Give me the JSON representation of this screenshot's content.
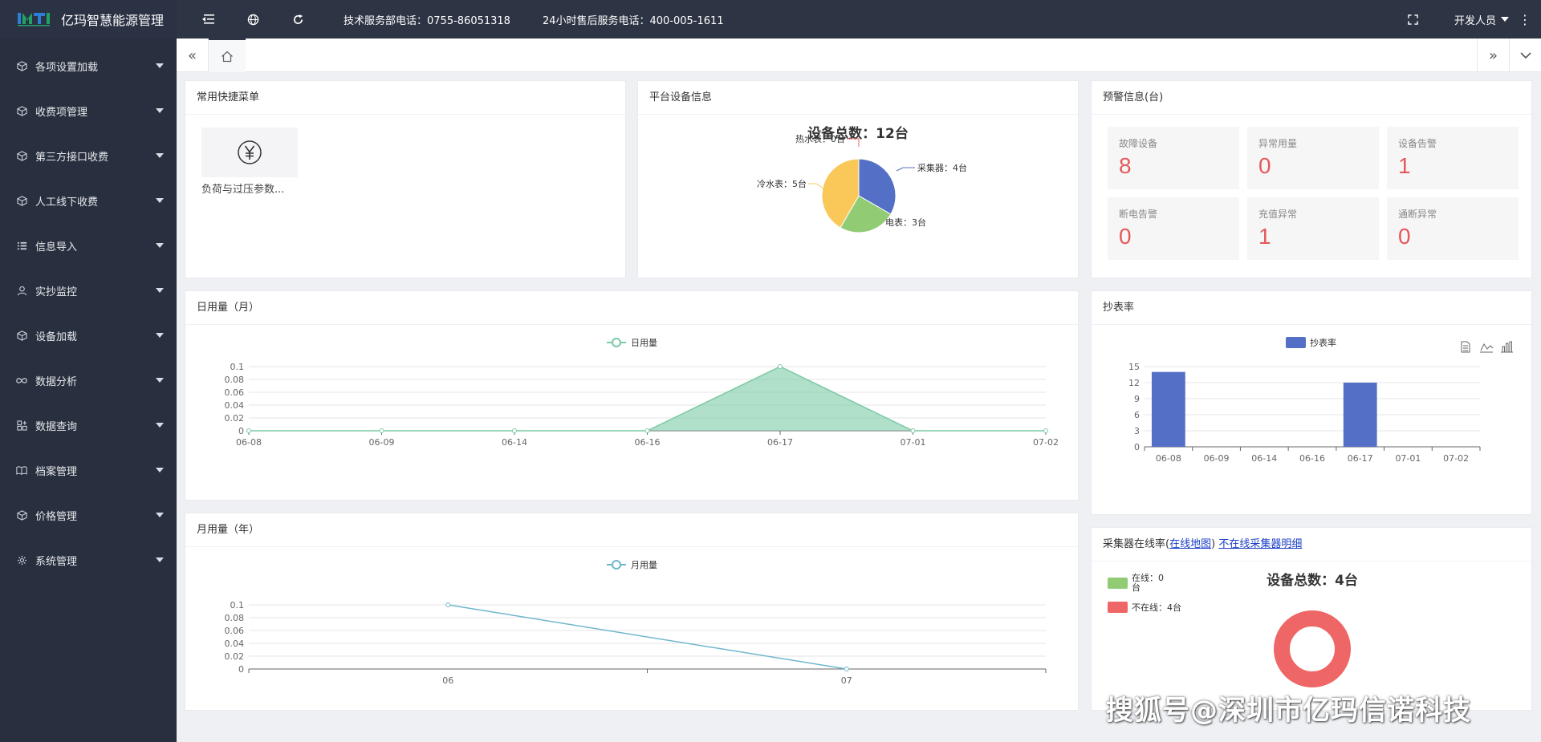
{
  "app": {
    "title": "亿玛智慧能源管理"
  },
  "header": {
    "tech_phone": "技术服务部电话：0755-86051318",
    "service_phone": "24小时售后服务电话：400-005-1611",
    "user": "开发人员"
  },
  "sidebar": {
    "items": [
      {
        "label": "各项设置加载",
        "icon": "cube-icon"
      },
      {
        "label": "收费项管理",
        "icon": "cube-icon"
      },
      {
        "label": "第三方接口收费",
        "icon": "cube-icon"
      },
      {
        "label": "人工线下收费",
        "icon": "cube-icon"
      },
      {
        "label": "信息导入",
        "icon": "list-icon"
      },
      {
        "label": "实抄监控",
        "icon": "user-icon"
      },
      {
        "label": "设备加载",
        "icon": "cube-icon"
      },
      {
        "label": "数据分析",
        "icon": "infinity-icon"
      },
      {
        "label": "数据查询",
        "icon": "grid-plus-icon"
      },
      {
        "label": "档案管理",
        "icon": "book-icon"
      },
      {
        "label": "价格管理",
        "icon": "cube-icon"
      },
      {
        "label": "系统管理",
        "icon": "gear-icon"
      }
    ]
  },
  "quick_menu": {
    "title": "常用快捷菜单",
    "item_label": "负荷与过压参数..."
  },
  "device_info": {
    "title": "平台设备信息",
    "chart_title": "设备总数：12台",
    "labels": {
      "collector": "采集器：4台",
      "electric": "电表：3台",
      "cold": "冷水表：5台",
      "hot": "热水表：0台"
    }
  },
  "warning": {
    "title": "预警信息(台)",
    "items": [
      {
        "label": "故障设备",
        "value": "8"
      },
      {
        "label": "异常用量",
        "value": "0"
      },
      {
        "label": "设备告警",
        "value": "1"
      },
      {
        "label": "断电告警",
        "value": "0"
      },
      {
        "label": "充值异常",
        "value": "1"
      },
      {
        "label": "通断异常",
        "value": "0"
      }
    ]
  },
  "daily": {
    "title": "日用量（月）",
    "legend": "日用量"
  },
  "meter_rate": {
    "title": "抄表率",
    "legend": "抄表率"
  },
  "monthly": {
    "title": "月用量（年）",
    "legend": "月用量"
  },
  "online": {
    "title_prefix": "采集器在线率(",
    "map_link": "在线地图",
    "title_mid": ")",
    "detail_link": "不在线采集器明细",
    "chart_title": "设备总数：4台",
    "legend_online_1": "在线：0",
    "legend_online_2": "台",
    "legend_offline": "不在线：4台"
  },
  "watermark": "搜狐号@深圳市亿玛信诺科技",
  "chart_data": [
    {
      "type": "pie",
      "title": "设备总数：12台",
      "categories": [
        "采集器",
        "电表",
        "冷水表",
        "热水表"
      ],
      "values": [
        4,
        3,
        5,
        0
      ],
      "colors": [
        "#5470c6",
        "#91cc75",
        "#fac858",
        "#ee6666"
      ]
    },
    {
      "type": "area",
      "title": "",
      "categories": [
        "06-08",
        "06-09",
        "06-14",
        "06-16",
        "06-17",
        "07-01",
        "07-02"
      ],
      "series": [
        {
          "name": "日用量",
          "values": [
            0,
            0,
            0,
            0,
            0.1,
            0,
            0
          ]
        }
      ],
      "ylim": [
        0,
        0.1
      ],
      "yticks": [
        "0",
        "0.02",
        "0.04",
        "0.06",
        "0.08",
        "0.1"
      ],
      "color": "#7cc9a6"
    },
    {
      "type": "bar",
      "title": "",
      "categories": [
        "06-08",
        "06-09",
        "06-14",
        "06-16",
        "06-17",
        "07-01",
        "07-02"
      ],
      "series": [
        {
          "name": "抄表率",
          "values": [
            14,
            0,
            0,
            0,
            12,
            0,
            0
          ]
        }
      ],
      "ylim": [
        0,
        15
      ],
      "yticks": [
        "0",
        "3",
        "6",
        "9",
        "12",
        "15"
      ],
      "color": "#5470c6"
    },
    {
      "type": "line",
      "title": "",
      "categories": [
        "06",
        "07"
      ],
      "series": [
        {
          "name": "月用量",
          "values": [
            0.1,
            0
          ]
        }
      ],
      "ylim": [
        0,
        0.1
      ],
      "yticks": [
        "0",
        "0.02",
        "0.04",
        "0.06",
        "0.08",
        "0.1"
      ],
      "color": "#6fb7cf"
    },
    {
      "type": "pie",
      "title": "设备总数：4台",
      "categories": [
        "在线",
        "不在线"
      ],
      "values": [
        0,
        4
      ],
      "colors": [
        "#91cc75",
        "#ee6666"
      ]
    }
  ]
}
